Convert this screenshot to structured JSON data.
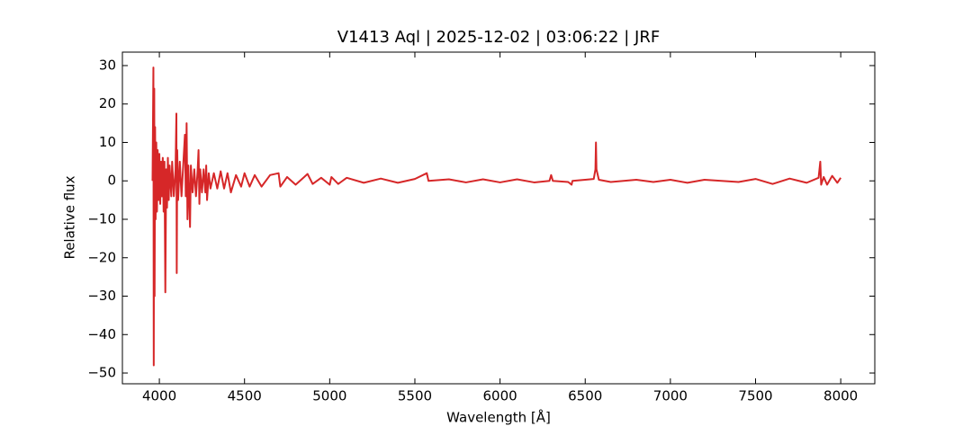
{
  "chart_data": {
    "type": "line",
    "title": "V1413 Aql | 2025-12-02 | 03:06:22 | JRF",
    "xlabel": "Wavelength [Å]",
    "ylabel": "Relative flux",
    "xlim": [
      3783,
      8200
    ],
    "ylim": [
      -52.8,
      33.5
    ],
    "xticks": [
      4000,
      4500,
      5000,
      5500,
      6000,
      6500,
      7000,
      7500,
      8000
    ],
    "yticks": [
      {
        "value": -50,
        "label": "−50"
      },
      {
        "value": -40,
        "label": "−40"
      },
      {
        "value": -30,
        "label": "−30"
      },
      {
        "value": -20,
        "label": "−20"
      },
      {
        "value": -10,
        "label": "−10"
      },
      0,
      10,
      20,
      30
    ],
    "series": [
      {
        "color": "#d62728",
        "x": [
          3960,
          3965,
          3967,
          3970,
          3972,
          3975,
          3978,
          3982,
          3986,
          3990,
          3995,
          4000,
          4005,
          4010,
          4015,
          4020,
          4025,
          4030,
          4035,
          4040,
          4045,
          4050,
          4055,
          4060,
          4070,
          4075,
          4085,
          4095,
          4100,
          4102,
          4105,
          4110,
          4120,
          4130,
          4140,
          4150,
          4155,
          4160,
          4165,
          4170,
          4180,
          4185,
          4195,
          4205,
          4215,
          4225,
          4230,
          4235,
          4240,
          4250,
          4260,
          4270,
          4275,
          4280,
          4290,
          4300,
          4320,
          4340,
          4360,
          4380,
          4400,
          4420,
          4450,
          4480,
          4500,
          4530,
          4560,
          4600,
          4650,
          4700,
          4710,
          4750,
          4800,
          4850,
          4870,
          4900,
          4950,
          5000,
          5010,
          5050,
          5100,
          5200,
          5300,
          5400,
          5500,
          5570,
          5580,
          5700,
          5800,
          5900,
          6000,
          6100,
          6200,
          6290,
          6300,
          6310,
          6400,
          6420,
          6425,
          6500,
          6550,
          6560,
          6563,
          6566,
          6580,
          6650,
          6800,
          6900,
          7000,
          7100,
          7200,
          7400,
          7500,
          7600,
          7700,
          7800,
          7870,
          7880,
          7885,
          7900,
          7920,
          7950,
          7980,
          8000
        ],
        "values": [
          0,
          29.5,
          -48,
          24,
          -30,
          14,
          -10,
          10,
          -8,
          8,
          -5,
          7,
          -6,
          5,
          -4,
          6,
          -8,
          5,
          -29,
          3,
          -7,
          6,
          -5,
          4,
          -4,
          5,
          -4,
          3,
          17.5,
          -24,
          8,
          -5,
          5,
          -4,
          4,
          12,
          -4,
          15,
          -10,
          4,
          -12,
          4,
          -3,
          3,
          -4,
          3,
          8,
          -6,
          3,
          -3,
          3,
          -3,
          4,
          -5,
          2,
          -2,
          2,
          -2,
          2.5,
          -2,
          2,
          -3,
          1.5,
          -1.5,
          2,
          -1.5,
          1.5,
          -1.5,
          1.5,
          2,
          -1.5,
          1,
          -1,
          1,
          1.8,
          -0.8,
          0.8,
          -1,
          1,
          -0.8,
          0.8,
          -0.5,
          0.6,
          -0.5,
          0.5,
          2,
          0,
          0.4,
          -0.4,
          0.4,
          -0.4,
          0.4,
          -0.4,
          0,
          1.5,
          0,
          -0.3,
          -1,
          0,
          0.3,
          0.5,
          3,
          10,
          3,
          0.3,
          -0.3,
          0.3,
          -0.3,
          0.3,
          -0.5,
          0.3,
          -0.3,
          0.5,
          -0.8,
          0.6,
          -0.5,
          0.8,
          5,
          -1,
          1,
          -1,
          1.3,
          -0.5,
          0.8
        ]
      }
    ]
  }
}
